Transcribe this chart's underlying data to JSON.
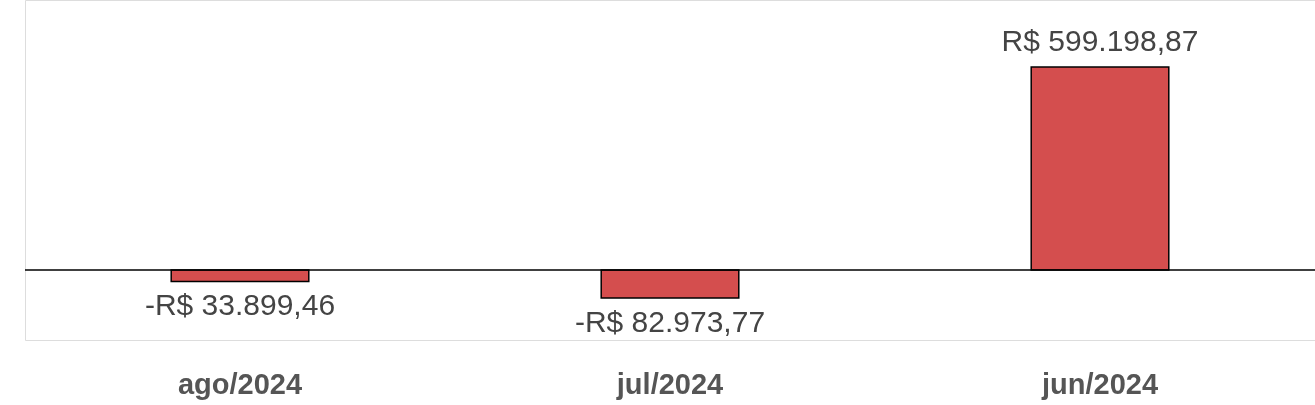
{
  "chart_data": {
    "type": "bar",
    "categories": [
      "ago/2024",
      "jul/2024",
      "jun/2024"
    ],
    "values": [
      -33899.46,
      -82973.77,
      599198.87
    ],
    "value_labels": [
      "-R$ 33.899,46",
      "-R$ 82.973,77",
      "R$ 599.198,87"
    ],
    "color": "#d44e4e",
    "grid": false
  }
}
